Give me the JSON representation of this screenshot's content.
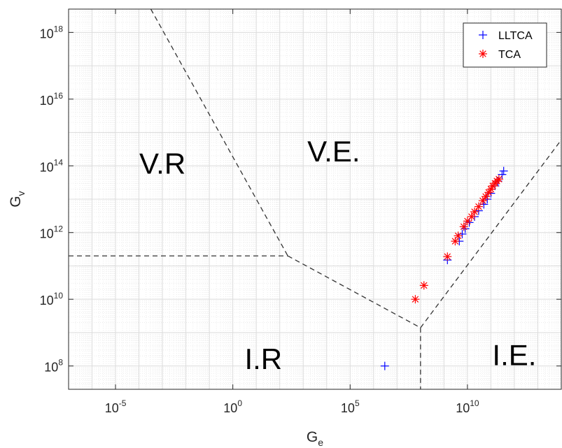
{
  "chart_data": {
    "type": "scatter",
    "xlabel": "G",
    "xlabel_sub": "e",
    "ylabel": "G",
    "ylabel_sub": "v",
    "xscale": "log",
    "yscale": "log",
    "xlim": [
      1e-07,
      100000000000000.0
    ],
    "ylim": [
      20000000.0,
      5e+18
    ],
    "grid": "major-and-minor",
    "legend_position": "top-right",
    "x_ticks": [
      {
        "base": "10",
        "exp": "-5",
        "value": 1e-05
      },
      {
        "base": "10",
        "exp": "0",
        "value": 1
      },
      {
        "base": "10",
        "exp": "5",
        "value": 100000.0
      },
      {
        "base": "10",
        "exp": "10",
        "value": 10000000000.0
      }
    ],
    "y_ticks": [
      {
        "base": "10",
        "exp": "8",
        "value": 100000000.0
      },
      {
        "base": "10",
        "exp": "10",
        "value": 10000000000.0
      },
      {
        "base": "10",
        "exp": "12",
        "value": 1000000000000.0
      },
      {
        "base": "10",
        "exp": "14",
        "value": 100000000000000.0
      },
      {
        "base": "10",
        "exp": "16",
        "value": 1e+16
      },
      {
        "base": "10",
        "exp": "18",
        "value": 1e+18
      }
    ],
    "regions": [
      {
        "label": "V.R",
        "x": 0.001,
        "y": 100000000000000.0
      },
      {
        "label": "V.E.",
        "x": 20000.0,
        "y": 230000000000000.0
      },
      {
        "label": "I.R",
        "x": 20.0,
        "y": 140000000.0
      },
      {
        "label": "I.E.",
        "x": 1000000000000.0,
        "y": 180000000.0
      }
    ],
    "boundaries": [
      {
        "x": [
          0.00032,
          220.0
        ],
        "y": [
          5e+18,
          200000000000.0
        ]
      },
      {
        "x": [
          1e-07,
          220.0
        ],
        "y": [
          200000000000.0,
          200000000000.0
        ]
      },
      {
        "x": [
          220.0,
          100000000.0
        ],
        "y": [
          200000000000.0,
          1400000000.0
        ]
      },
      {
        "x": [
          100000000.0,
          100000000.0
        ],
        "y": [
          1400000000.0,
          20000000.0
        ]
      },
      {
        "x": [
          100000000.0,
          100000000000000.0
        ],
        "y": [
          1400000000.0,
          600000000000000.0
        ]
      }
    ],
    "series": [
      {
        "name": "LLTCA",
        "color": "#0000ff",
        "marker": "plus",
        "x": [
          3000000.0,
          1400000000.0,
          4500000000.0,
          6000000000.0,
          8000000000.0,
          12000000000.0,
          20000000000.0,
          30000000000.0,
          50000000000.0,
          70000000000.0,
          100000000000.0,
          150000000000.0,
          200000000000.0,
          300000000000.0,
          350000000000.0
        ],
        "y": [
          100000000.0,
          150000000000.0,
          550000000000.0,
          900000000000.0,
          1300000000000.0,
          2000000000000.0,
          3000000000000.0,
          4500000000000.0,
          7000000000000.0,
          10000000000000.0,
          15000000000000.0,
          25000000000000.0,
          35000000000000.0,
          55000000000000.0,
          70000000000000.0
        ]
      },
      {
        "name": "TCA",
        "color": "#ff0000",
        "marker": "asterisk",
        "x": [
          60000000.0,
          140000000.0,
          1400000000.0,
          3000000000.0,
          4000000000.0,
          7000000000.0,
          10000000000.0,
          15000000000.0,
          20000000000.0,
          30000000000.0,
          45000000000.0,
          60000000000.0,
          80000000000.0,
          100000000000.0,
          120000000000.0,
          150000000000.0,
          180000000000.0,
          220000000000.0
        ],
        "y": [
          10000000000.0,
          26000000000.0,
          190000000000.0,
          550000000000.0,
          800000000000.0,
          1500000000000.0,
          2200000000000.0,
          3000000000000.0,
          4200000000000.0,
          6000000000000.0,
          9000000000000.0,
          12000000000000.0,
          16000000000000.0,
          20000000000000.0,
          25000000000000.0,
          30000000000000.0,
          35000000000000.0,
          40000000000000.0
        ]
      }
    ]
  }
}
